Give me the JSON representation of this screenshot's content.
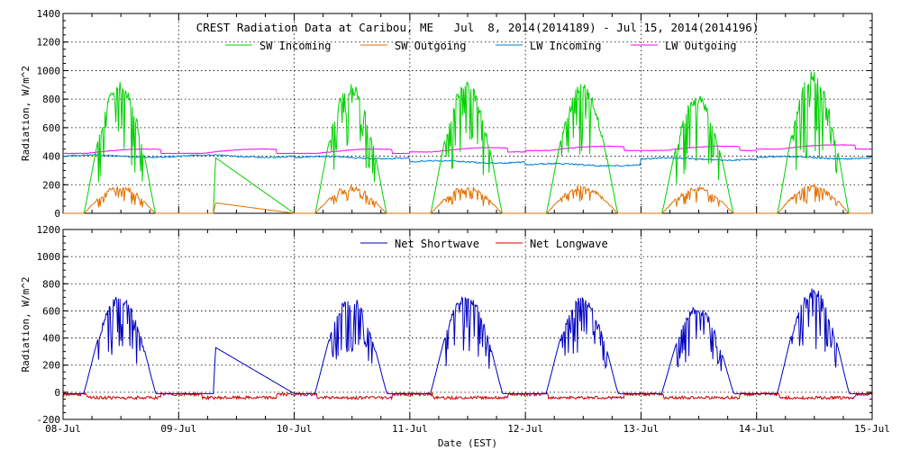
{
  "title": "CREST Radiation Data at Caribou, ME   Jul  8, 2014(2014189) - Jul 15, 2014(2014196)",
  "xlabel": "Date (EST)",
  "chart_data": [
    {
      "type": "line",
      "ylabel": "Radiation, W/m^2",
      "ylim": [
        0,
        1400
      ],
      "yticks": [
        0,
        200,
        400,
        600,
        800,
        1000,
        1200,
        1400
      ],
      "xlim": [
        0,
        7
      ],
      "xtick_labels": [
        "08-Jul",
        "09-Jul",
        "10-Jul",
        "11-Jul",
        "12-Jul",
        "13-Jul",
        "14-Jul",
        "15-Jul"
      ],
      "grid": true,
      "legend_position": "top",
      "series": [
        {
          "name": "SW Incoming",
          "color": "#00d000",
          "peaks": [
            930,
            0,
            920,
            930,
            910,
            840,
            1000
          ]
        },
        {
          "name": "SW Outgoing",
          "color": "#e07000",
          "peaks": [
            200,
            0,
            200,
            200,
            200,
            195,
            215
          ]
        },
        {
          "name": "LW Incoming",
          "color": "#0080d0",
          "daily_level": [
            400,
            400,
            390,
            360,
            340,
            380,
            390
          ],
          "final": 370
        },
        {
          "name": "LW Outgoing",
          "color": "#ff00ff",
          "daily_level": [
            420,
            420,
            420,
            430,
            440,
            440,
            450
          ],
          "final": 410
        }
      ],
      "gap": {
        "start_day": 1.3,
        "end_day": 2.0,
        "sw_in": [
          400,
          0
        ],
        "sw_out": [
          75,
          0
        ]
      }
    },
    {
      "type": "line",
      "ylabel": "Radiation, W/m^2",
      "ylim": [
        -200,
        1200
      ],
      "yticks": [
        -200,
        0,
        200,
        400,
        600,
        800,
        1000,
        1200
      ],
      "xlim": [
        0,
        7
      ],
      "xtick_labels": [
        "08-Jul",
        "09-Jul",
        "10-Jul",
        "11-Jul",
        "12-Jul",
        "13-Jul",
        "14-Jul",
        "15-Jul"
      ],
      "grid": true,
      "legend_position": "top",
      "series": [
        {
          "name": "Net Shortwave",
          "color": "#0000c0",
          "peaks": [
            720,
            0,
            710,
            730,
            720,
            640,
            770
          ]
        },
        {
          "name": "Net Longwave",
          "color": "#d00000",
          "level": -40,
          "night_level": -15
        }
      ],
      "gap": {
        "start_day": 1.3,
        "end_day": 2.0,
        "net_sw": [
          340,
          -10
        ]
      }
    }
  ],
  "legend": {
    "sw_in": "SW Incoming",
    "sw_out": "SW Outgoing",
    "lw_in": "LW Incoming",
    "lw_out": "LW Outgoing",
    "net_sw": "Net Shortwave",
    "net_lw": "Net Longwave"
  }
}
